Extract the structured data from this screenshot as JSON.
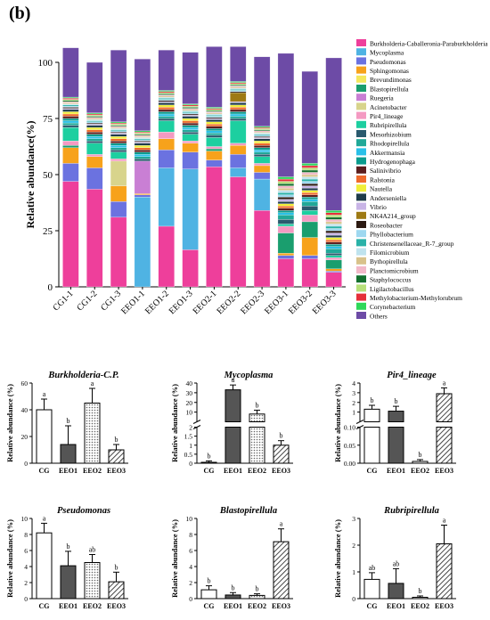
{
  "panel_label": "(b)",
  "chart_data": [
    {
      "type": "bar",
      "stacked": true,
      "title": "",
      "xlabel": "",
      "ylabel": "Relative abundance(%)",
      "ylim": [
        0,
        100
      ],
      "yticks": [
        0,
        25,
        50,
        75,
        100
      ],
      "legend_position": "right",
      "categories": [
        "CG1-1",
        "CG1-2",
        "CG1-3",
        "EEO1-1",
        "EEO1-2",
        "EEO1-3",
        "EEO2-1",
        "EEO2-2",
        "EEO2-3",
        "EEO3-1",
        "EEO3-2",
        "EEO3-3"
      ],
      "series": [
        {
          "name": "Burkholderia-Caballeronia-Paraburkholderia",
          "color": "#ee3f9b",
          "values": [
            47,
            43.5,
            31,
            0,
            27,
            16.5,
            53.5,
            49,
            34,
            12.5,
            12.5,
            6.5
          ]
        },
        {
          "name": "Mycoplasma",
          "color": "#4fb3e3",
          "values": [
            0,
            0,
            0,
            40,
            26,
            36,
            0,
            4,
            14,
            0,
            0,
            0
          ]
        },
        {
          "name": "Pseudomonas",
          "color": "#6b72e0",
          "values": [
            8,
            9.5,
            7,
            1,
            8,
            7.5,
            3,
            6,
            3,
            1.5,
            1.5,
            0.5
          ]
        },
        {
          "name": "Sphingomonas",
          "color": "#f7a21b",
          "values": [
            7,
            5,
            7,
            0.5,
            5,
            4,
            4,
            4,
            3,
            1,
            8,
            1
          ]
        },
        {
          "name": "Brevundimonas",
          "color": "#f4e75d",
          "values": [
            0,
            0,
            0,
            0,
            0,
            0,
            0,
            0,
            0,
            0,
            0,
            0
          ]
        },
        {
          "name": "Blastopirellula",
          "color": "#1a9e6e",
          "values": [
            1,
            0,
            0,
            0,
            0,
            0,
            1,
            0,
            0,
            9,
            7,
            4
          ]
        },
        {
          "name": "Ruegeria",
          "color": "#c97fd4",
          "values": [
            0,
            0,
            0,
            14.5,
            0,
            0,
            0,
            0,
            0,
            0,
            0,
            0
          ]
        },
        {
          "name": "Acinetobacter",
          "color": "#d8d48c",
          "values": [
            0,
            0,
            11,
            0,
            0,
            0,
            0,
            0,
            0,
            0,
            0,
            0
          ]
        },
        {
          "name": "Pir4_lineage",
          "color": "#f49ac2",
          "values": [
            2,
            1,
            1,
            0,
            3,
            1,
            1,
            1,
            1,
            3,
            3,
            1
          ]
        },
        {
          "name": "Rubripirellula",
          "color": "#1dcfa0",
          "values": [
            6,
            5,
            3,
            0,
            5,
            3,
            4,
            10,
            3,
            1,
            2,
            1
          ]
        },
        {
          "name": "Mesorhizobium",
          "color": "#2a5a6e",
          "values": [
            1,
            1,
            1,
            1,
            1,
            1,
            1,
            1,
            1,
            2,
            2,
            1
          ]
        },
        {
          "name": "Rhodopirellula",
          "color": "#20a898",
          "values": [
            1,
            1,
            1,
            1,
            1,
            1,
            1,
            1,
            1,
            2,
            2,
            2
          ]
        },
        {
          "name": "Akkermansia",
          "color": "#29c0e8",
          "values": [
            1,
            1,
            1,
            1,
            1,
            1,
            1,
            1,
            1,
            1,
            1,
            1
          ]
        },
        {
          "name": "Hydrogenophaga",
          "color": "#0b9c8e",
          "values": [
            1,
            1,
            1,
            1,
            1,
            1,
            1,
            1,
            1,
            1,
            1,
            1
          ]
        },
        {
          "name": "Salinivibrio",
          "color": "#5c1e1e",
          "values": [
            1,
            1,
            1,
            1,
            1,
            1,
            1,
            1,
            1,
            1,
            1,
            1
          ]
        },
        {
          "name": "Ralstonia",
          "color": "#ef6a2c",
          "values": [
            1,
            1,
            1,
            1,
            1,
            1,
            1,
            1,
            1,
            1,
            1,
            1
          ]
        },
        {
          "name": "Nautella",
          "color": "#f0ee3a",
          "values": [
            1,
            1,
            1,
            1,
            1,
            1,
            1,
            1,
            1,
            1,
            1,
            1
          ]
        },
        {
          "name": "Anderseniella",
          "color": "#1f3c4a",
          "values": [
            1,
            1,
            1,
            1,
            1,
            1,
            1,
            1,
            1,
            1,
            1,
            1
          ]
        },
        {
          "name": "Vibrio",
          "color": "#c8b4e6",
          "values": [
            0.5,
            0.5,
            0.5,
            0.5,
            0.5,
            0.5,
            0.5,
            0.5,
            0.5,
            1,
            1,
            1
          ]
        },
        {
          "name": "NK4A214_group",
          "color": "#9e7a14",
          "values": [
            0,
            0,
            0,
            0,
            0,
            0,
            0,
            4,
            0,
            0,
            0,
            0
          ]
        },
        {
          "name": "Roseobacter",
          "color": "#2c1a12",
          "values": [
            0.5,
            0.5,
            0.5,
            0.5,
            0.5,
            0.5,
            0.5,
            0.5,
            0.5,
            1,
            1,
            1
          ]
        },
        {
          "name": "Phyllobacterium",
          "color": "#9ed8f0",
          "values": [
            0.5,
            0.5,
            0.5,
            0.5,
            0.5,
            0.5,
            0.5,
            0.5,
            0.5,
            1,
            1,
            1
          ]
        },
        {
          "name": "Christensenellaceae_R-7_group",
          "color": "#2ab2a8",
          "values": [
            0.5,
            0.5,
            0.5,
            0.5,
            0.5,
            0.5,
            0.5,
            0.5,
            0.5,
            1,
            1,
            1
          ]
        },
        {
          "name": "Filomicrobium",
          "color": "#bfe3ee",
          "values": [
            0.5,
            0.5,
            0.5,
            0.5,
            0.5,
            0.5,
            0.5,
            0.5,
            0.5,
            1,
            1,
            1
          ]
        },
        {
          "name": "Bythopirellula",
          "color": "#d8c28a",
          "values": [
            0.5,
            0.5,
            0.5,
            0.5,
            0.5,
            0.5,
            0.5,
            0.5,
            0.5,
            1,
            1,
            1
          ]
        },
        {
          "name": "Planctomicrobium",
          "color": "#f2b8c8",
          "values": [
            0.5,
            0.5,
            0.5,
            0.5,
            0.5,
            0.5,
            0.5,
            0.5,
            0.5,
            1,
            1,
            1
          ]
        },
        {
          "name": "Staphylococcus",
          "color": "#14702e",
          "values": [
            0.5,
            0.5,
            0.5,
            0.5,
            0.5,
            0.5,
            0.5,
            0.5,
            0.5,
            1,
            1,
            1
          ]
        },
        {
          "name": "Ligilactobacillus",
          "color": "#b6e07a",
          "values": [
            0.5,
            0.5,
            0.5,
            0.5,
            0.5,
            0.5,
            0.5,
            0.5,
            0.5,
            1,
            1,
            1
          ]
        },
        {
          "name": "Methylobacterium-Methylorubrum",
          "color": "#e5303a",
          "values": [
            0.5,
            0.5,
            0.5,
            0.5,
            0.5,
            0.5,
            0.5,
            0.5,
            0.5,
            1,
            1,
            1
          ]
        },
        {
          "name": "Corynebacterium",
          "color": "#2fd85a",
          "values": [
            0.5,
            0.5,
            0.5,
            0.5,
            0.5,
            0.5,
            0.5,
            0.5,
            0.5,
            1,
            1,
            1
          ]
        },
        {
          "name": "Others",
          "color": "#6d4ba6",
          "values": [
            22,
            22.5,
            32,
            32,
            18,
            23,
            27,
            15.5,
            31,
            55,
            41,
            68
          ]
        }
      ]
    },
    {
      "type": "bar",
      "title": "Burkholderia-C.P.",
      "xlabel": "",
      "ylabel": "Relative abundance (%)",
      "ylim": [
        0,
        60
      ],
      "yticks": [
        0,
        20,
        40,
        60
      ],
      "categories": [
        "CG",
        "EEO1",
        "EEO2",
        "EEO3"
      ],
      "values": [
        40,
        14,
        45,
        10
      ],
      "errors": [
        8,
        14,
        11,
        4
      ],
      "letters": [
        "a",
        "b",
        "a",
        "b"
      ]
    },
    {
      "type": "bar",
      "title": "Mycoplasma",
      "xlabel": "",
      "ylabel": "Relative abundance (%)",
      "y_axis_break": [
        2,
        5
      ],
      "yticks": [
        0.0,
        0.5,
        1.0,
        1.5,
        2.0,
        10,
        20,
        30,
        40
      ],
      "categories": [
        "CG",
        "EEO1",
        "EEO2",
        "EEO3"
      ],
      "values": [
        0.05,
        33,
        8,
        1.0
      ],
      "errors": [
        0.08,
        5,
        4,
        0.25
      ],
      "letters": [
        "b",
        "a",
        "b",
        "b"
      ]
    },
    {
      "type": "bar",
      "title": "Pir4_lineage",
      "xlabel": "",
      "ylabel": "Relative abundance (%)",
      "y_axis_break": [
        0.1,
        0.5
      ],
      "yticks": [
        0.0,
        0.05,
        0.1,
        1,
        2,
        3,
        4
      ],
      "categories": [
        "CG",
        "EEO1",
        "EEO2",
        "EEO3"
      ],
      "values": [
        1.3,
        1.1,
        0.005,
        2.9
      ],
      "errors": [
        0.4,
        0.5,
        0.005,
        0.6
      ],
      "letters": [
        "b",
        "b",
        "b",
        "a"
      ]
    },
    {
      "type": "bar",
      "title": "Pseudomonas",
      "xlabel": "",
      "ylabel": "Relative abundance (%)",
      "ylim": [
        0,
        10
      ],
      "yticks": [
        0,
        2,
        4,
        6,
        8,
        10
      ],
      "categories": [
        "CG",
        "EEO1",
        "EEO2",
        "EEO3"
      ],
      "values": [
        8.2,
        4.1,
        4.5,
        2.1
      ],
      "errors": [
        1.2,
        1.8,
        1.0,
        1.2
      ],
      "letters": [
        "a",
        "b",
        "ab",
        "b"
      ]
    },
    {
      "type": "bar",
      "title": "Blastopirellula",
      "xlabel": "",
      "ylabel": "Relative abundance (%)",
      "ylim": [
        0,
        10
      ],
      "yticks": [
        0,
        2,
        4,
        6,
        8,
        10
      ],
      "categories": [
        "CG",
        "EEO1",
        "EEO2",
        "EEO3"
      ],
      "values": [
        1.1,
        0.45,
        0.4,
        7.1
      ],
      "errors": [
        0.5,
        0.3,
        0.2,
        1.6
      ],
      "letters": [
        "b",
        "b",
        "b",
        "a"
      ]
    },
    {
      "type": "bar",
      "title": "Rubripirellula",
      "xlabel": "",
      "ylabel": "Relative abundance (%)",
      "ylim": [
        0,
        3
      ],
      "yticks": [
        0,
        1,
        2,
        3
      ],
      "categories": [
        "CG",
        "EEO1",
        "EEO2",
        "EEO3"
      ],
      "values": [
        0.72,
        0.57,
        0.05,
        2.05
      ],
      "errors": [
        0.25,
        0.55,
        0.05,
        0.7
      ],
      "letters": [
        "ab",
        "ab",
        "b",
        "a"
      ]
    }
  ]
}
